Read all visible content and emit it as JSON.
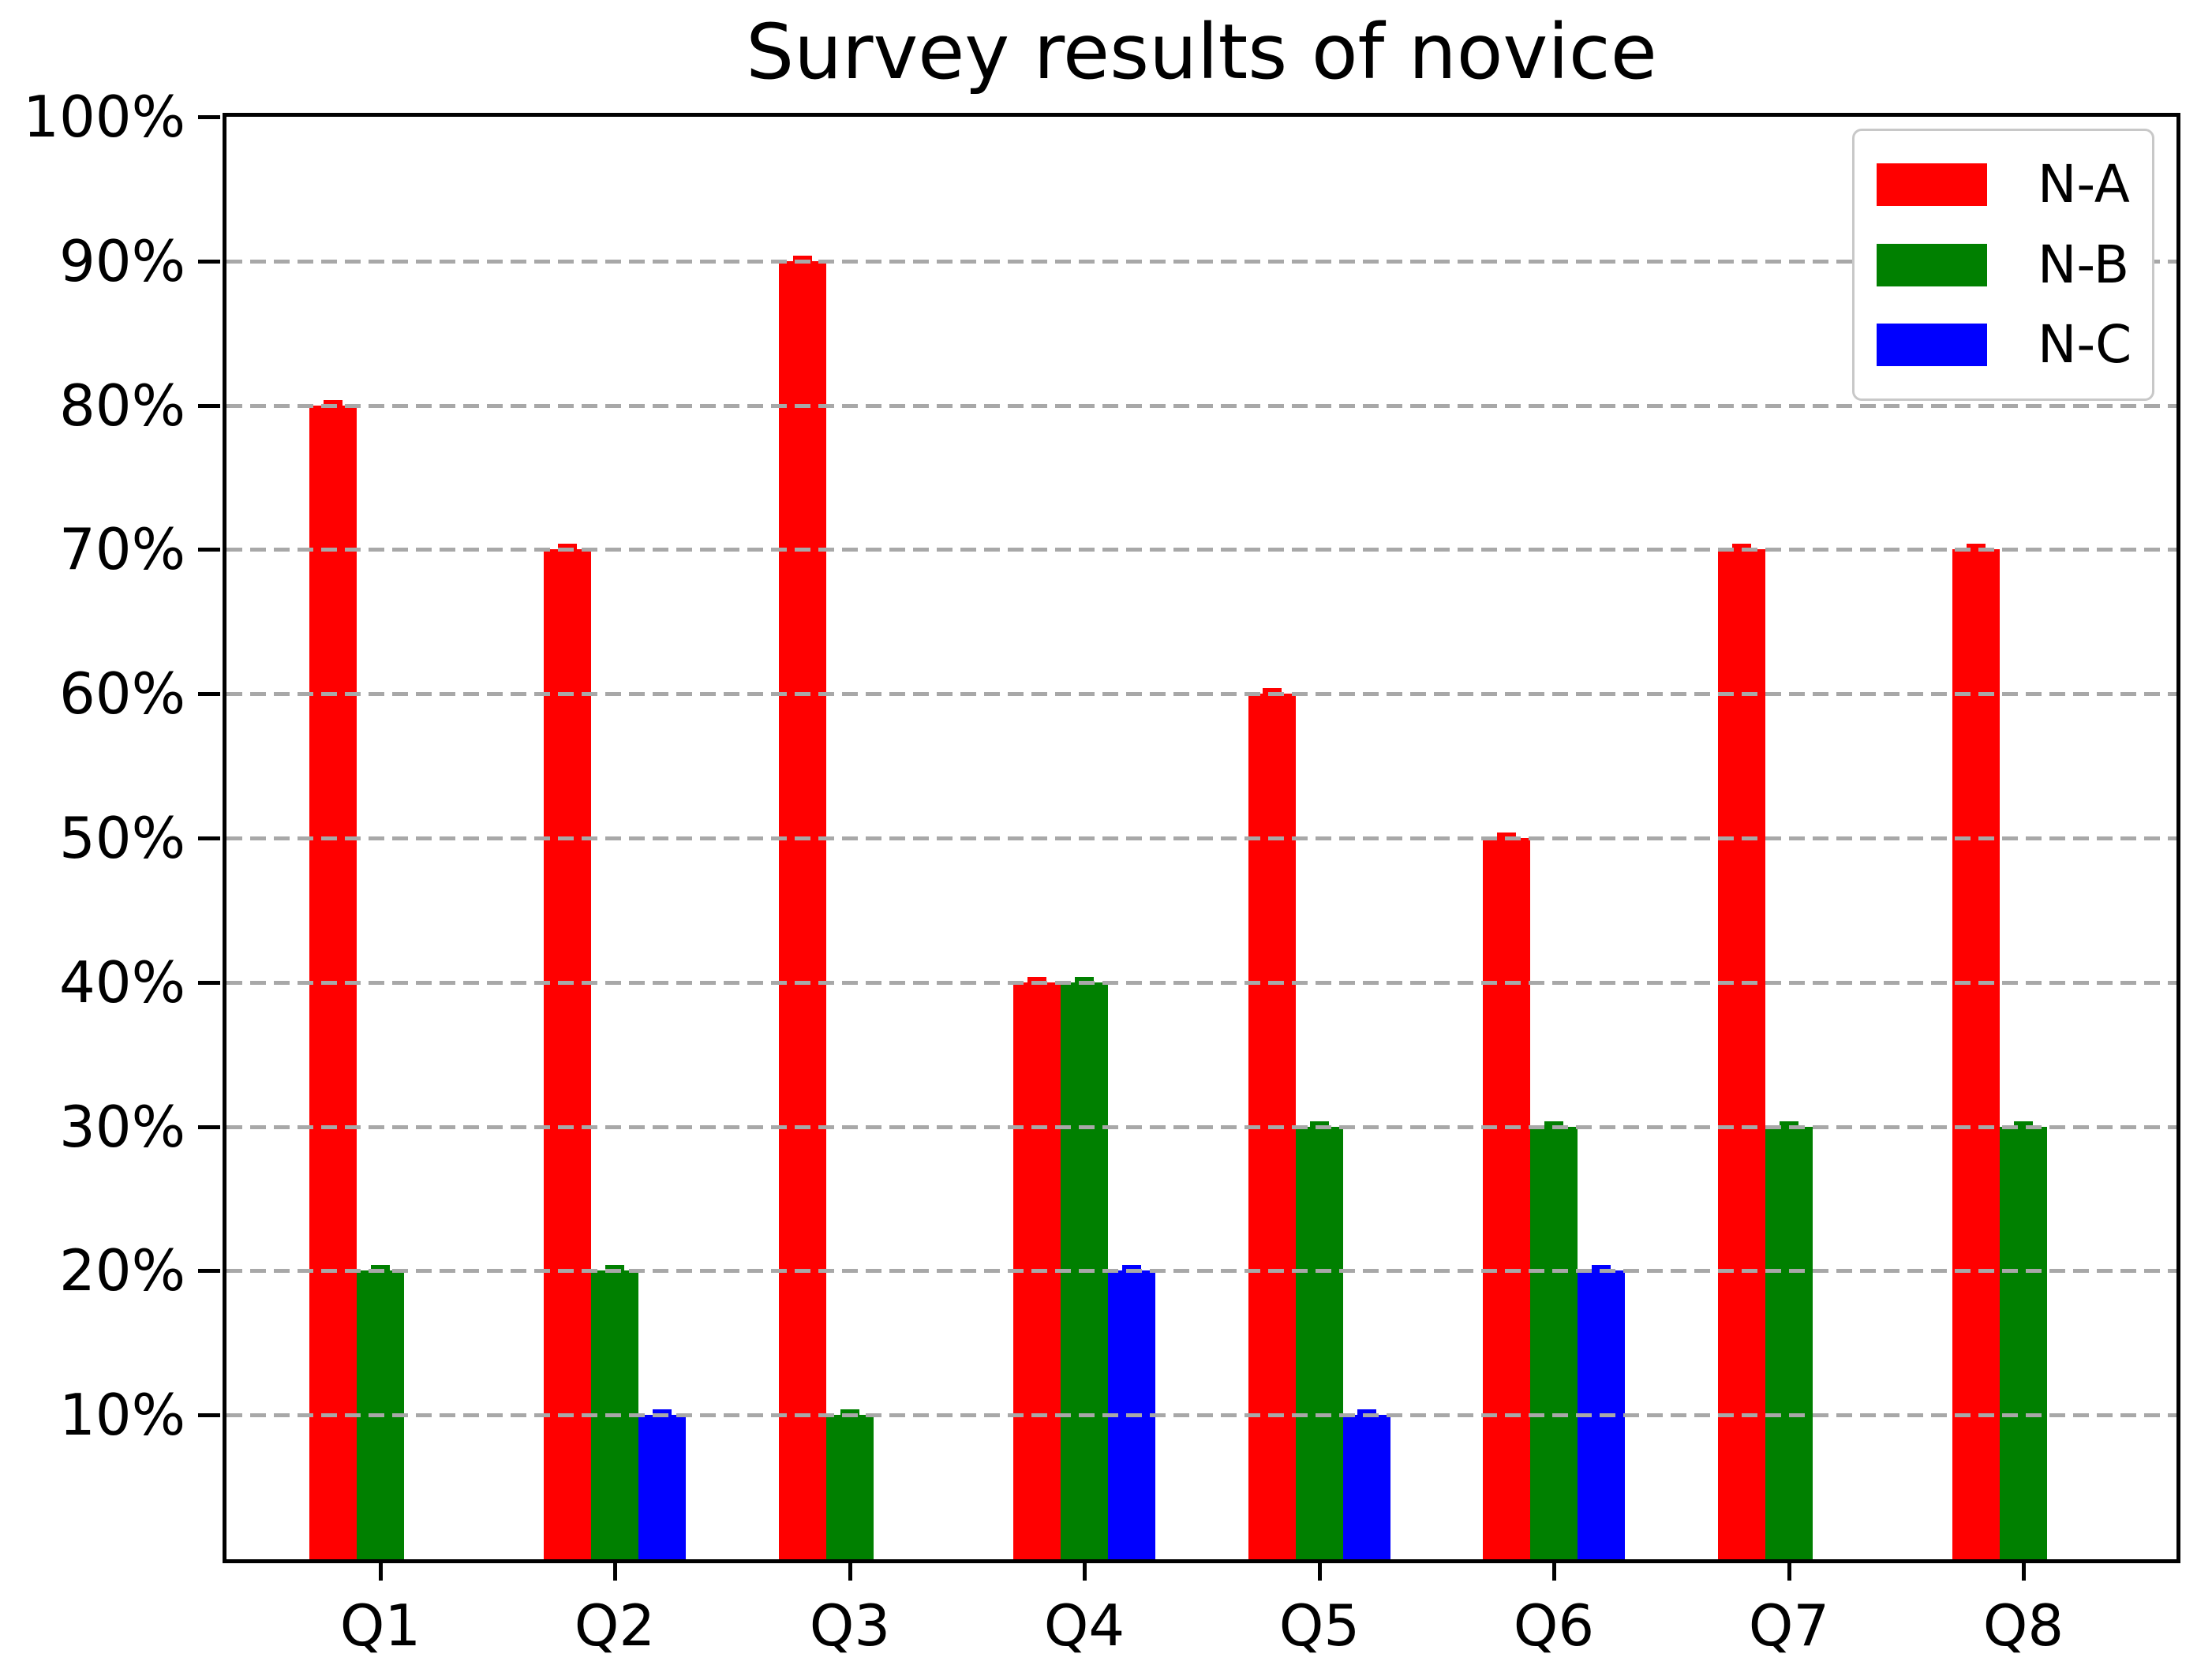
{
  "figure": {
    "title": "Survey results of novice"
  },
  "axes": {
    "y_tick_labels": [
      "100%",
      "90%",
      "80%",
      "70%",
      "60%",
      "50%",
      "40%",
      "30%",
      "20%",
      "10%"
    ],
    "y_tick_values": [
      100,
      90,
      80,
      70,
      60,
      50,
      40,
      30,
      20,
      10
    ],
    "x_tick_labels": [
      "Q1",
      "Q2",
      "Q3",
      "Q4",
      "Q5",
      "Q6",
      "Q7",
      "Q8"
    ]
  },
  "legend": {
    "entries": [
      {
        "label": "N-A",
        "color": "#ff0000"
      },
      {
        "label": "N-B",
        "color": "#008000"
      },
      {
        "label": "N-C",
        "color": "#0000ff"
      }
    ]
  },
  "colors": {
    "series_na": "#ff0000",
    "series_nb": "#008000",
    "series_nc": "#0000ff",
    "grid": "#a8a8a8",
    "axis": "#000000",
    "background": "#ffffff"
  },
  "chart_data": {
    "type": "bar",
    "title": "Survey results of novice",
    "categories": [
      "Q1",
      "Q2",
      "Q3",
      "Q4",
      "Q5",
      "Q6",
      "Q7",
      "Q8"
    ],
    "series": [
      {
        "name": "N-A",
        "color": "#ff0000",
        "values": [
          80,
          70,
          90,
          40,
          60,
          50,
          70,
          70
        ]
      },
      {
        "name": "N-B",
        "color": "#008000",
        "values": [
          20,
          20,
          10,
          40,
          30,
          30,
          30,
          30
        ]
      },
      {
        "name": "N-C",
        "color": "#0000ff",
        "values": [
          0,
          10,
          0,
          20,
          10,
          20,
          0,
          0
        ]
      }
    ],
    "xlabel": "",
    "ylabel": "",
    "ylim": [
      0,
      100
    ],
    "y_tick_step": 10,
    "y_tick_format": "percent",
    "grid": "horizontal dashed, drawn above bars",
    "bars_per_group": 3,
    "error_caps": true,
    "legend_position": "upper right"
  }
}
